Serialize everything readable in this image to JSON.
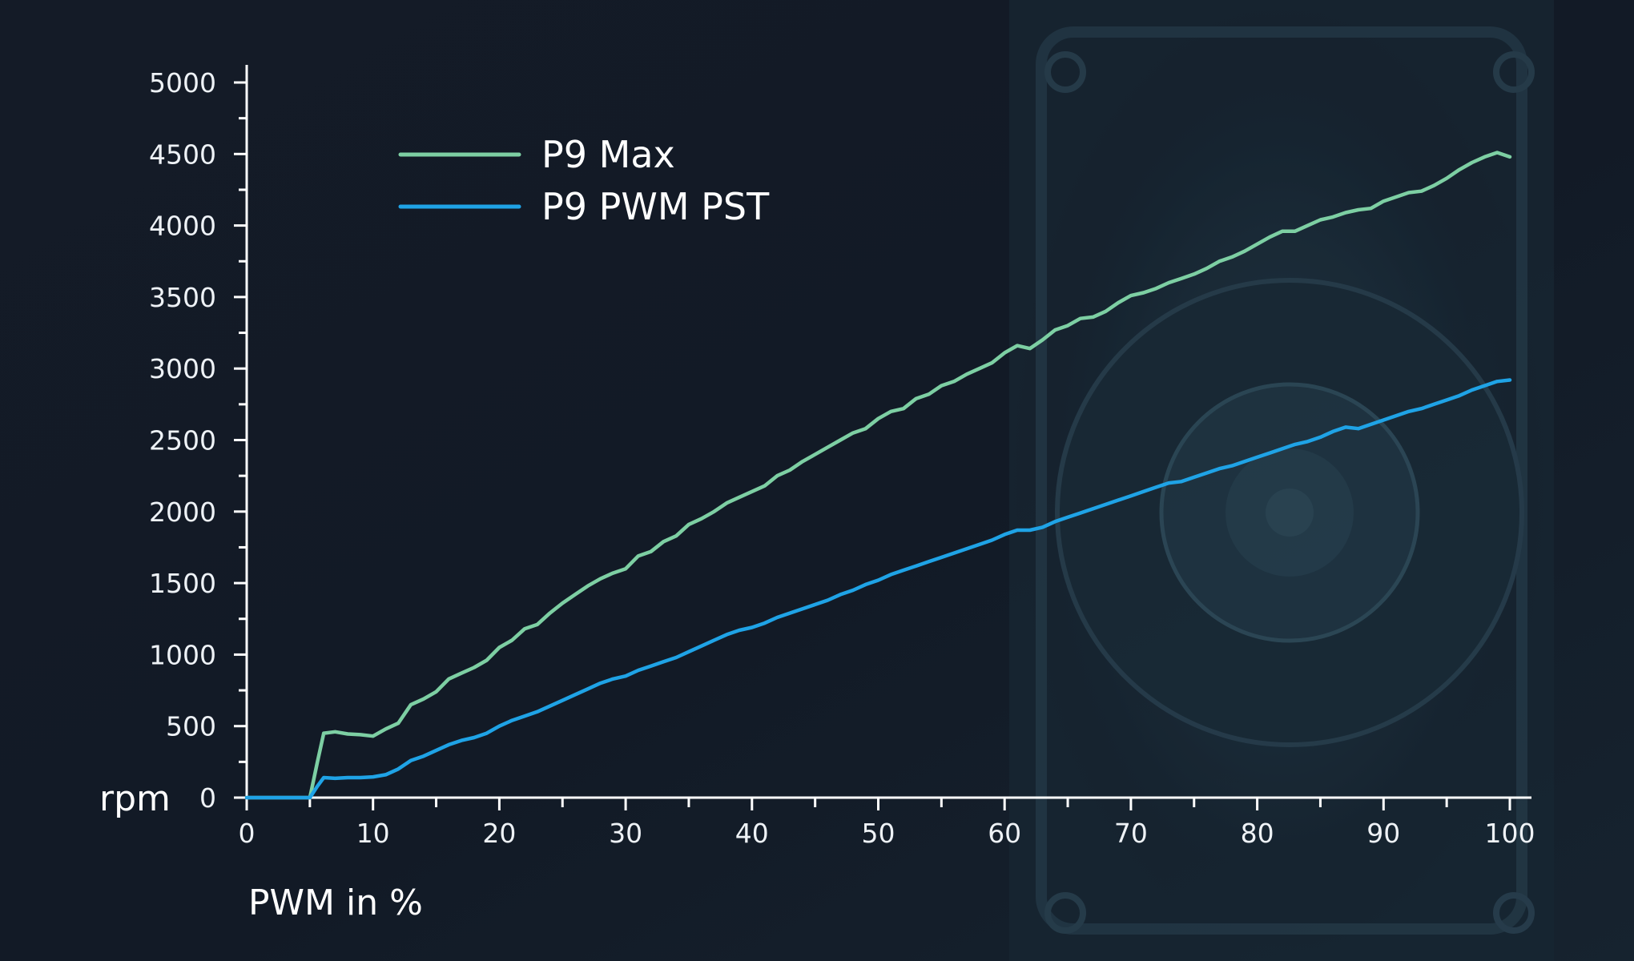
{
  "chart_data": {
    "type": "line",
    "xlabel": "PWM in %",
    "ylabel": "rpm",
    "xlim": [
      0,
      100
    ],
    "ylim": [
      0,
      5000
    ],
    "x_ticks": [
      0,
      10,
      20,
      30,
      40,
      50,
      60,
      70,
      80,
      90,
      100
    ],
    "y_ticks": [
      0,
      500,
      1000,
      1500,
      2000,
      2500,
      3000,
      3500,
      4000,
      4500,
      5000
    ],
    "grid": false,
    "legend_position": "top-left",
    "background_color": "#121a25",
    "axis_color": "#ffffff",
    "series": [
      {
        "name": "P9 Max",
        "color": "#7dcfa3",
        "x": [
          0,
          5,
          5.6,
          6.1,
          7,
          8,
          9,
          10,
          11,
          12,
          13,
          14,
          15,
          16,
          17,
          18,
          19,
          20,
          21,
          22,
          23,
          24,
          25,
          26,
          27,
          28,
          29,
          30,
          31,
          32,
          33,
          34,
          35,
          36,
          37,
          38,
          39,
          40,
          41,
          42,
          43,
          44,
          45,
          46,
          47,
          48,
          49,
          50,
          51,
          52,
          53,
          54,
          55,
          56,
          57,
          58,
          59,
          60,
          61,
          62,
          63,
          64,
          65,
          66,
          67,
          68,
          69,
          70,
          71,
          72,
          73,
          74,
          75,
          76,
          77,
          78,
          79,
          80,
          81,
          82,
          83,
          84,
          85,
          86,
          87,
          88,
          89,
          90,
          91,
          92,
          93,
          94,
          95,
          96,
          97,
          98,
          99,
          100
        ],
        "y": [
          0,
          0,
          250,
          450,
          460,
          445,
          440,
          430,
          480,
          520,
          650,
          690,
          740,
          830,
          870,
          910,
          960,
          1050,
          1100,
          1180,
          1210,
          1290,
          1360,
          1420,
          1480,
          1530,
          1570,
          1600,
          1690,
          1720,
          1790,
          1830,
          1910,
          1950,
          2000,
          2060,
          2100,
          2140,
          2180,
          2250,
          2290,
          2350,
          2400,
          2450,
          2500,
          2550,
          2580,
          2650,
          2700,
          2720,
          2790,
          2820,
          2880,
          2910,
          2960,
          3000,
          3040,
          3110,
          3160,
          3140,
          3200,
          3270,
          3300,
          3350,
          3360,
          3400,
          3460,
          3510,
          3530,
          3560,
          3600,
          3630,
          3660,
          3700,
          3750,
          3780,
          3820,
          3870,
          3920,
          3960,
          3960,
          4000,
          4040,
          4060,
          4090,
          4110,
          4120,
          4170,
          4200,
          4230,
          4240,
          4280,
          4330,
          4390,
          4440,
          4480,
          4510,
          4480
        ]
      },
      {
        "name": "P9 PWM PST",
        "color": "#1fa3e6",
        "x": [
          0,
          5,
          5.6,
          6.1,
          7,
          8,
          9,
          10,
          11,
          12,
          13,
          14,
          15,
          16,
          17,
          18,
          19,
          20,
          21,
          22,
          23,
          24,
          25,
          26,
          27,
          28,
          29,
          30,
          31,
          32,
          33,
          34,
          35,
          36,
          37,
          38,
          39,
          40,
          41,
          42,
          43,
          44,
          45,
          46,
          47,
          48,
          49,
          50,
          51,
          52,
          53,
          54,
          55,
          56,
          57,
          58,
          59,
          60,
          61,
          62,
          63,
          64,
          65,
          66,
          67,
          68,
          69,
          70,
          71,
          72,
          73,
          74,
          75,
          76,
          77,
          78,
          79,
          80,
          81,
          82,
          83,
          84,
          85,
          86,
          87,
          88,
          89,
          90,
          91,
          92,
          93,
          94,
          95,
          96,
          97,
          98,
          99,
          100
        ],
        "y": [
          0,
          0,
          80,
          140,
          135,
          140,
          140,
          145,
          160,
          200,
          260,
          290,
          330,
          370,
          400,
          420,
          450,
          500,
          540,
          570,
          600,
          640,
          680,
          720,
          760,
          800,
          830,
          850,
          890,
          920,
          950,
          980,
          1020,
          1060,
          1100,
          1140,
          1170,
          1190,
          1220,
          1260,
          1290,
          1320,
          1350,
          1380,
          1420,
          1450,
          1490,
          1520,
          1560,
          1590,
          1620,
          1650,
          1680,
          1710,
          1740,
          1770,
          1800,
          1840,
          1870,
          1870,
          1890,
          1930,
          1960,
          1990,
          2020,
          2050,
          2080,
          2110,
          2140,
          2170,
          2200,
          2210,
          2240,
          2270,
          2300,
          2320,
          2350,
          2380,
          2410,
          2440,
          2470,
          2490,
          2520,
          2560,
          2590,
          2580,
          2610,
          2640,
          2670,
          2700,
          2720,
          2750,
          2780,
          2810,
          2850,
          2880,
          2910,
          2920
        ]
      }
    ]
  }
}
